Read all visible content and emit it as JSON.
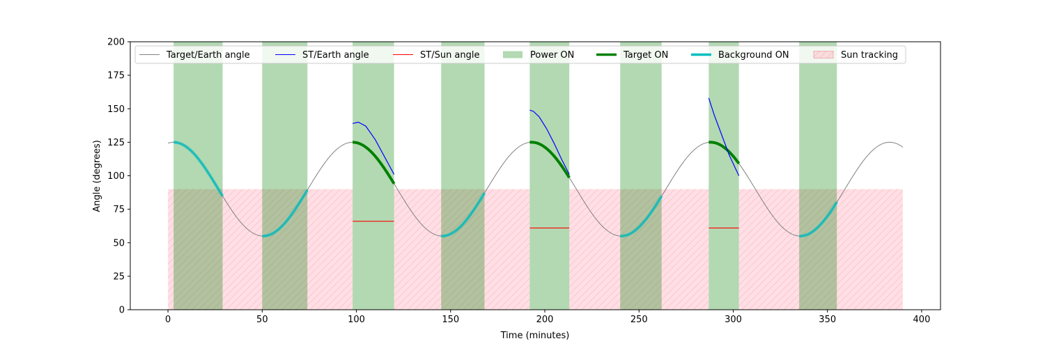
{
  "chart_data": {
    "type": "line",
    "xlabel": "Time (minutes)",
    "ylabel": "Angle (degrees)",
    "xlim": [
      -20,
      410
    ],
    "ylim": [
      0,
      200
    ],
    "xticks": [
      0,
      50,
      100,
      150,
      200,
      250,
      300,
      350,
      400
    ],
    "yticks": [
      0,
      25,
      50,
      75,
      100,
      125,
      150,
      175,
      200
    ],
    "legend_position": "top",
    "target_earth_angle": {
      "name": "Target/Earth angle",
      "color": "#808080",
      "x_range": [
        0,
        390
      ],
      "mean": 90,
      "amplitude": 35,
      "period_minutes": 95,
      "peak_at_minutes": 3
    },
    "power_on": {
      "name": "Power ON",
      "color": "#008000",
      "intervals": [
        [
          3,
          29
        ],
        [
          50,
          74
        ],
        [
          98,
          120
        ],
        [
          145,
          168
        ],
        [
          192,
          213
        ],
        [
          240,
          262
        ],
        [
          287,
          303
        ],
        [
          335,
          355
        ]
      ]
    },
    "sun_tracking": {
      "name": "Sun tracking",
      "color": "#ffc0cb",
      "y_max": 90,
      "intervals": [
        [
          0,
          98
        ],
        [
          120,
          192
        ],
        [
          213,
          287
        ],
        [
          303,
          390
        ]
      ]
    },
    "target_on": {
      "name": "Target ON",
      "color": "#008000",
      "intervals": [
        [
          98,
          120
        ],
        [
          192,
          213
        ],
        [
          287,
          303
        ]
      ]
    },
    "background_on": {
      "name": "Background ON",
      "color": "#00bfbf",
      "intervals": [
        [
          3,
          29
        ],
        [
          50,
          74
        ],
        [
          145,
          168
        ],
        [
          240,
          262
        ],
        [
          335,
          355
        ]
      ]
    },
    "st_earth_angle": {
      "name": "ST/Earth angle",
      "color": "#0000ff",
      "segments": [
        {
          "x": [
            98,
            101,
            105,
            110,
            115,
            120
          ],
          "y": [
            139,
            140,
            137,
            127,
            114,
            101
          ]
        },
        {
          "x": [
            192,
            194,
            197,
            201,
            205,
            209,
            213
          ],
          "y": [
            149,
            148,
            144,
            135,
            124,
            112,
            101
          ]
        },
        {
          "x": [
            287,
            290,
            294,
            298,
            303
          ],
          "y": [
            158,
            145,
            130,
            115,
            100
          ]
        }
      ]
    },
    "st_sun_angle": {
      "name": "ST/Sun angle",
      "color": "#ff0000",
      "segments": [
        {
          "x": [
            98,
            120
          ],
          "y": [
            66,
            66
          ]
        },
        {
          "x": [
            192,
            213
          ],
          "y": [
            61,
            61
          ]
        },
        {
          "x": [
            287,
            303
          ],
          "y": [
            61,
            61
          ]
        }
      ]
    },
    "legend": [
      "Target/Earth angle",
      "ST/Earth angle",
      "ST/Sun angle",
      "Power ON",
      "Target ON",
      "Background ON",
      "Sun tracking"
    ]
  }
}
